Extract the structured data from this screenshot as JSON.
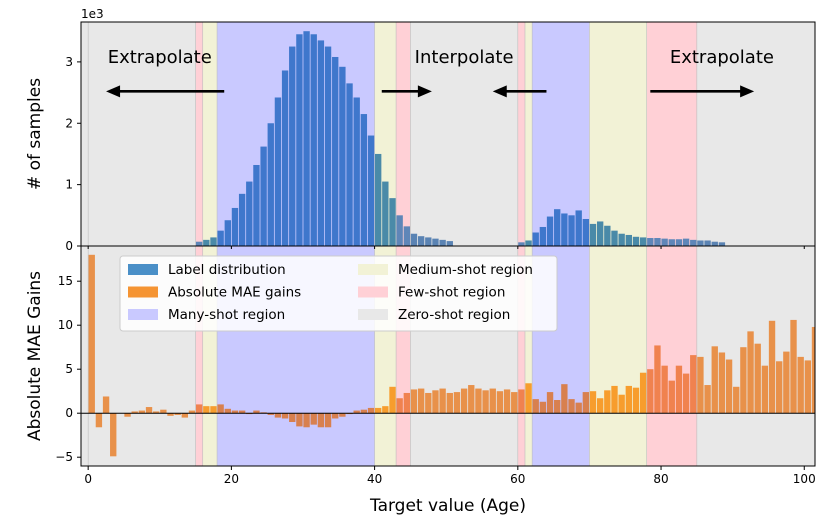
{
  "chart_data": {
    "type": "bar",
    "xlabel": "Target value (Age)",
    "x_ticks": [
      0,
      20,
      40,
      60,
      80,
      100
    ],
    "xlim": [
      -1,
      101.5
    ],
    "colors": {
      "label_distribution": "#3a78c9",
      "absolute_mae_gains": "#f28e2b",
      "many_shot": "#c9c9ff",
      "medium_shot": "#f2f2d6",
      "few_shot": "#ffd0d6",
      "zero_shot": "#e8e8e8"
    },
    "regions": [
      {
        "type": "zero",
        "from": 0,
        "to": 15
      },
      {
        "type": "few",
        "from": 15,
        "to": 16
      },
      {
        "type": "medium",
        "from": 16,
        "to": 18
      },
      {
        "type": "many",
        "from": 18,
        "to": 40
      },
      {
        "type": "medium",
        "from": 40,
        "to": 43
      },
      {
        "type": "few",
        "from": 43,
        "to": 45
      },
      {
        "type": "zero",
        "from": 45,
        "to": 60
      },
      {
        "type": "few",
        "from": 60,
        "to": 61
      },
      {
        "type": "medium",
        "from": 61,
        "to": 62
      },
      {
        "type": "many",
        "from": 62,
        "to": 70
      },
      {
        "type": "medium",
        "from": 70,
        "to": 78
      },
      {
        "type": "few",
        "from": 78,
        "to": 85
      },
      {
        "type": "zero",
        "from": 85,
        "to": 101
      }
    ],
    "top_panel": {
      "ylabel": "# of samples",
      "scale_label": "1e3",
      "ylim": [
        0,
        3.65
      ],
      "y_ticks": [
        0,
        1,
        2,
        3
      ],
      "annotations": [
        {
          "text": "Extrapolate",
          "x": 10,
          "y": 2.98
        },
        {
          "text": "Interpolate",
          "x": 52.5,
          "y": 2.98
        },
        {
          "text": "Extrapolate",
          "x": 88.5,
          "y": 2.98
        }
      ],
      "arrows": [
        {
          "from": 19,
          "to": 2.5,
          "y": 2.52
        },
        {
          "from": 41,
          "to": 48,
          "y": 2.52
        },
        {
          "from": 64,
          "to": 56.5,
          "y": 2.52
        },
        {
          "from": 78.5,
          "to": 93,
          "y": 2.52
        }
      ],
      "series": [
        {
          "name": "Label distribution",
          "x_start": 15,
          "values": [
            0.07,
            0.1,
            0.14,
            0.25,
            0.42,
            0.62,
            0.85,
            1.05,
            1.32,
            1.62,
            2.0,
            2.42,
            2.86,
            3.25,
            3.45,
            3.5,
            3.45,
            3.35,
            3.25,
            3.08,
            2.92,
            2.65,
            2.42,
            2.15,
            1.8,
            1.5,
            1.05,
            0.78,
            0.5,
            0.32,
            0.2,
            0.16,
            0.14,
            0.12,
            0.1,
            0.08,
            0,
            0,
            0,
            0,
            0,
            0,
            0,
            0,
            0,
            0.06,
            0.09,
            0.22,
            0.31,
            0.48,
            0.6,
            0.53,
            0.5,
            0.58,
            0.44,
            0.36,
            0.4,
            0.33,
            0.25,
            0.2,
            0.18,
            0.15,
            0.14,
            0.13,
            0.13,
            0.12,
            0.11,
            0.11,
            0.12,
            0.1,
            0.09,
            0.09,
            0.07,
            0.06
          ]
        }
      ]
    },
    "bottom_panel": {
      "ylabel": "Absolute MAE Gains",
      "ylim": [
        -6,
        19
      ],
      "y_ticks": [
        -5,
        0,
        5,
        10,
        15
      ],
      "series": [
        {
          "name": "Absolute MAE gains",
          "x_start": 0,
          "values": [
            18.0,
            -1.6,
            1.9,
            -4.9,
            0,
            -0.4,
            0.2,
            0.3,
            0.7,
            0.2,
            0.4,
            -0.3,
            -0.2,
            -0.5,
            0.3,
            1.0,
            0.8,
            0.8,
            1.0,
            0.5,
            0.3,
            0.3,
            -0.1,
            0.3,
            0.1,
            -0.2,
            -0.5,
            -0.6,
            -1.0,
            -1.5,
            -1.6,
            -1.3,
            -1.6,
            -1.6,
            -0.6,
            -0.4,
            -0.1,
            0.3,
            0.4,
            0.6,
            0.6,
            0.8,
            3.0,
            1.7,
            2.3,
            2.7,
            2.8,
            2.3,
            2.6,
            2.8,
            2.3,
            2.4,
            2.8,
            3.2,
            2.8,
            2.6,
            2.8,
            2.5,
            2.7,
            2.4,
            2.7,
            3.4,
            1.6,
            1.3,
            2.4,
            1.5,
            3.3,
            1.6,
            1.2,
            2.4,
            2.5,
            1.7,
            2.6,
            3.1,
            2.1,
            3.1,
            2.9,
            4.6,
            5.0,
            7.7,
            5.4,
            3.7,
            5.4,
            4.5,
            6.6,
            6.4,
            3.2,
            7.6,
            6.9,
            6.1,
            3.0,
            7.5,
            9.3,
            7.9,
            5.4,
            10.5,
            5.9,
            7.0,
            10.6,
            6.4,
            6.0,
            9.8
          ]
        }
      ]
    },
    "legend": {
      "position": "top-left",
      "entries": [
        {
          "label": "Label distribution",
          "color_key": "label_distribution"
        },
        {
          "label": "Absolute MAE gains",
          "color_key": "absolute_mae_gains"
        },
        {
          "label": "Many-shot region",
          "color_key": "many_shot"
        },
        {
          "label": "Medium-shot region",
          "color_key": "medium_shot"
        },
        {
          "label": "Few-shot region",
          "color_key": "few_shot"
        },
        {
          "label": "Zero-shot region",
          "color_key": "zero_shot"
        }
      ]
    }
  }
}
